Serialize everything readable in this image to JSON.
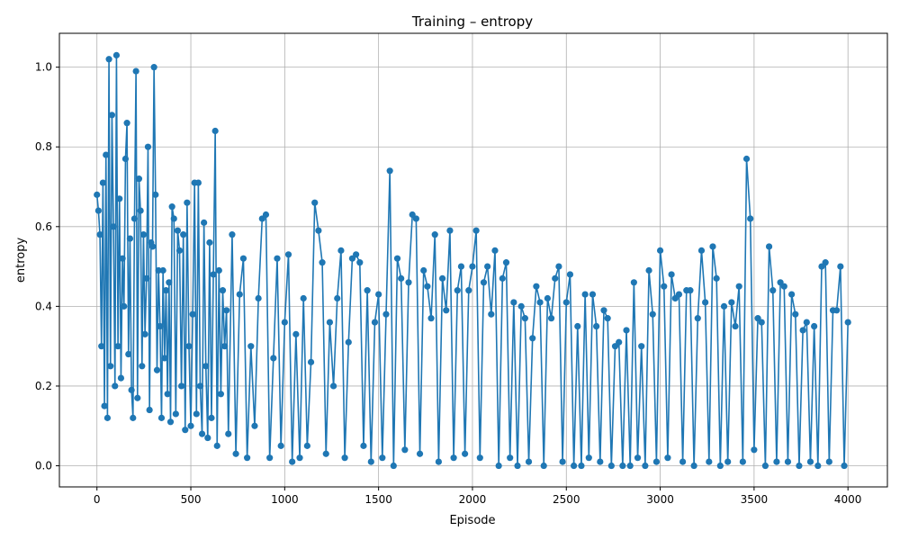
{
  "chart_data": {
    "type": "line",
    "title": "Training – entropy",
    "xlabel": "Episode",
    "ylabel": "entropy",
    "xlim": [
      -200,
      4210
    ],
    "ylim": [
      -0.053,
      1.085
    ],
    "xticks": [
      0,
      500,
      1000,
      1500,
      2000,
      2500,
      3000,
      3500,
      4000
    ],
    "yticks": [
      0.0,
      0.2,
      0.4,
      0.6,
      0.8,
      1.0
    ],
    "xtick_labels": [
      "0",
      "500",
      "1000",
      "1500",
      "2000",
      "2500",
      "3000",
      "3500",
      "4000"
    ],
    "ytick_labels": [
      "0.0",
      "0.2",
      "0.4",
      "0.6",
      "0.8",
      "1.0"
    ],
    "grid": true,
    "series_color": "#1f77b4",
    "marker": "circle",
    "series": [
      {
        "x": [
          0,
          8,
          16,
          24,
          32,
          40,
          48,
          56,
          64,
          72,
          80,
          88,
          96,
          104,
          112,
          120,
          128,
          136,
          144,
          152,
          160,
          168,
          176,
          184,
          192,
          200,
          208,
          216,
          224,
          232,
          240,
          248,
          256,
          264,
          272,
          280,
          288,
          296,
          304,
          312,
          320,
          328,
          336,
          344,
          352,
          360,
          368,
          376,
          384,
          392,
          400,
          410,
          420,
          430,
          440,
          450,
          460,
          470,
          480,
          490,
          500,
          510,
          520,
          530,
          540,
          550,
          560,
          570,
          580,
          590,
          600,
          610,
          620,
          630,
          640,
          650,
          660,
          670,
          680,
          690,
          700,
          720,
          740,
          760,
          780,
          800,
          820,
          840,
          860,
          880,
          900,
          920,
          940,
          960,
          980,
          1000,
          1020,
          1040,
          1060,
          1080,
          1100,
          1120,
          1140,
          1160,
          1180,
          1200,
          1220,
          1240,
          1260,
          1280,
          1300,
          1320,
          1340,
          1360,
          1380,
          1400,
          1420,
          1440,
          1460,
          1480,
          1500,
          1520,
          1540,
          1560,
          1580,
          1600,
          1620,
          1640,
          1660,
          1680,
          1700,
          1720,
          1740,
          1760,
          1780,
          1800,
          1820,
          1840,
          1860,
          1880,
          1900,
          1920,
          1940,
          1960,
          1980,
          2000,
          2020,
          2040,
          2060,
          2080,
          2100,
          2120,
          2140,
          2160,
          2180,
          2200,
          2220,
          2240,
          2260,
          2280,
          2300,
          2320,
          2340,
          2360,
          2380,
          2400,
          2420,
          2440,
          2460,
          2480,
          2500,
          2520,
          2540,
          2560,
          2580,
          2600,
          2620,
          2640,
          2660,
          2680,
          2700,
          2720,
          2740,
          2760,
          2780,
          2800,
          2820,
          2840,
          2860,
          2880,
          2900,
          2920,
          2940,
          2960,
          2980,
          3000,
          3020,
          3040,
          3060,
          3080,
          3100,
          3120,
          3140,
          3160,
          3180,
          3200,
          3220,
          3240,
          3260,
          3280,
          3300,
          3320,
          3340,
          3360,
          3380,
          3400,
          3420,
          3440,
          3460,
          3480,
          3500,
          3520,
          3540,
          3560,
          3580,
          3600,
          3620,
          3640,
          3660,
          3680,
          3700,
          3720,
          3740,
          3760,
          3780,
          3800,
          3820,
          3840,
          3860,
          3880,
          3900,
          3920,
          3940,
          3960,
          3980,
          4000
        ],
        "y": [
          0.68,
          0.64,
          0.58,
          0.3,
          0.71,
          0.15,
          0.78,
          0.12,
          1.02,
          0.25,
          0.88,
          0.6,
          0.2,
          1.03,
          0.3,
          0.67,
          0.22,
          0.52,
          0.4,
          0.77,
          0.86,
          0.28,
          0.57,
          0.19,
          0.12,
          0.62,
          0.99,
          0.17,
          0.72,
          0.64,
          0.25,
          0.58,
          0.33,
          0.47,
          0.8,
          0.14,
          0.56,
          0.55,
          1.0,
          0.68,
          0.24,
          0.49,
          0.35,
          0.12,
          0.49,
          0.27,
          0.44,
          0.18,
          0.46,
          0.11,
          0.65,
          0.62,
          0.13,
          0.59,
          0.54,
          0.2,
          0.58,
          0.09,
          0.66,
          0.3,
          0.1,
          0.38,
          0.71,
          0.13,
          0.71,
          0.2,
          0.08,
          0.61,
          0.25,
          0.07,
          0.56,
          0.12,
          0.48,
          0.84,
          0.05,
          0.49,
          0.18,
          0.44,
          0.3,
          0.39,
          0.08,
          0.58,
          0.03,
          0.43,
          0.52,
          0.02,
          0.3,
          0.1,
          0.42,
          0.62,
          0.63,
          0.02,
          0.27,
          0.52,
          0.05,
          0.36,
          0.53,
          0.01,
          0.33,
          0.02,
          0.42,
          0.05,
          0.26,
          0.66,
          0.59,
          0.51,
          0.03,
          0.36,
          0.2,
          0.42,
          0.54,
          0.02,
          0.31,
          0.52,
          0.53,
          0.51,
          0.05,
          0.44,
          0.01,
          0.36,
          0.43,
          0.02,
          0.38,
          0.74,
          0.0,
          0.52,
          0.47,
          0.04,
          0.46,
          0.63,
          0.62,
          0.03,
          0.49,
          0.45,
          0.37,
          0.58,
          0.01,
          0.47,
          0.39,
          0.59,
          0.02,
          0.44,
          0.5,
          0.03,
          0.44,
          0.5,
          0.59,
          0.02,
          0.46,
          0.5,
          0.38,
          0.54,
          0.0,
          0.47,
          0.51,
          0.02,
          0.41,
          0.0,
          0.4,
          0.37,
          0.01,
          0.32,
          0.45,
          0.41,
          0.0,
          0.42,
          0.37,
          0.47,
          0.5,
          0.01,
          0.41,
          0.48,
          0.0,
          0.35,
          0.0,
          0.43,
          0.02,
          0.43,
          0.35,
          0.01,
          0.39,
          0.37,
          0.0,
          0.3,
          0.31,
          0.0,
          0.34,
          0.0,
          0.46,
          0.02,
          0.3,
          0.0,
          0.49,
          0.38,
          0.01,
          0.54,
          0.45,
          0.02,
          0.48,
          0.42,
          0.43,
          0.01,
          0.44,
          0.44,
          0.0,
          0.37,
          0.54,
          0.41,
          0.01,
          0.55,
          0.47,
          0.0,
          0.4,
          0.01,
          0.41,
          0.35,
          0.45,
          0.01,
          0.77,
          0.62,
          0.04,
          0.37,
          0.36,
          0.0,
          0.55,
          0.44,
          0.01,
          0.46,
          0.45,
          0.01,
          0.43,
          0.38,
          0.0,
          0.34,
          0.36,
          0.01,
          0.35,
          0.0,
          0.5,
          0.51,
          0.01,
          0.39,
          0.39,
          0.5,
          0.0,
          0.36
        ]
      }
    ]
  }
}
